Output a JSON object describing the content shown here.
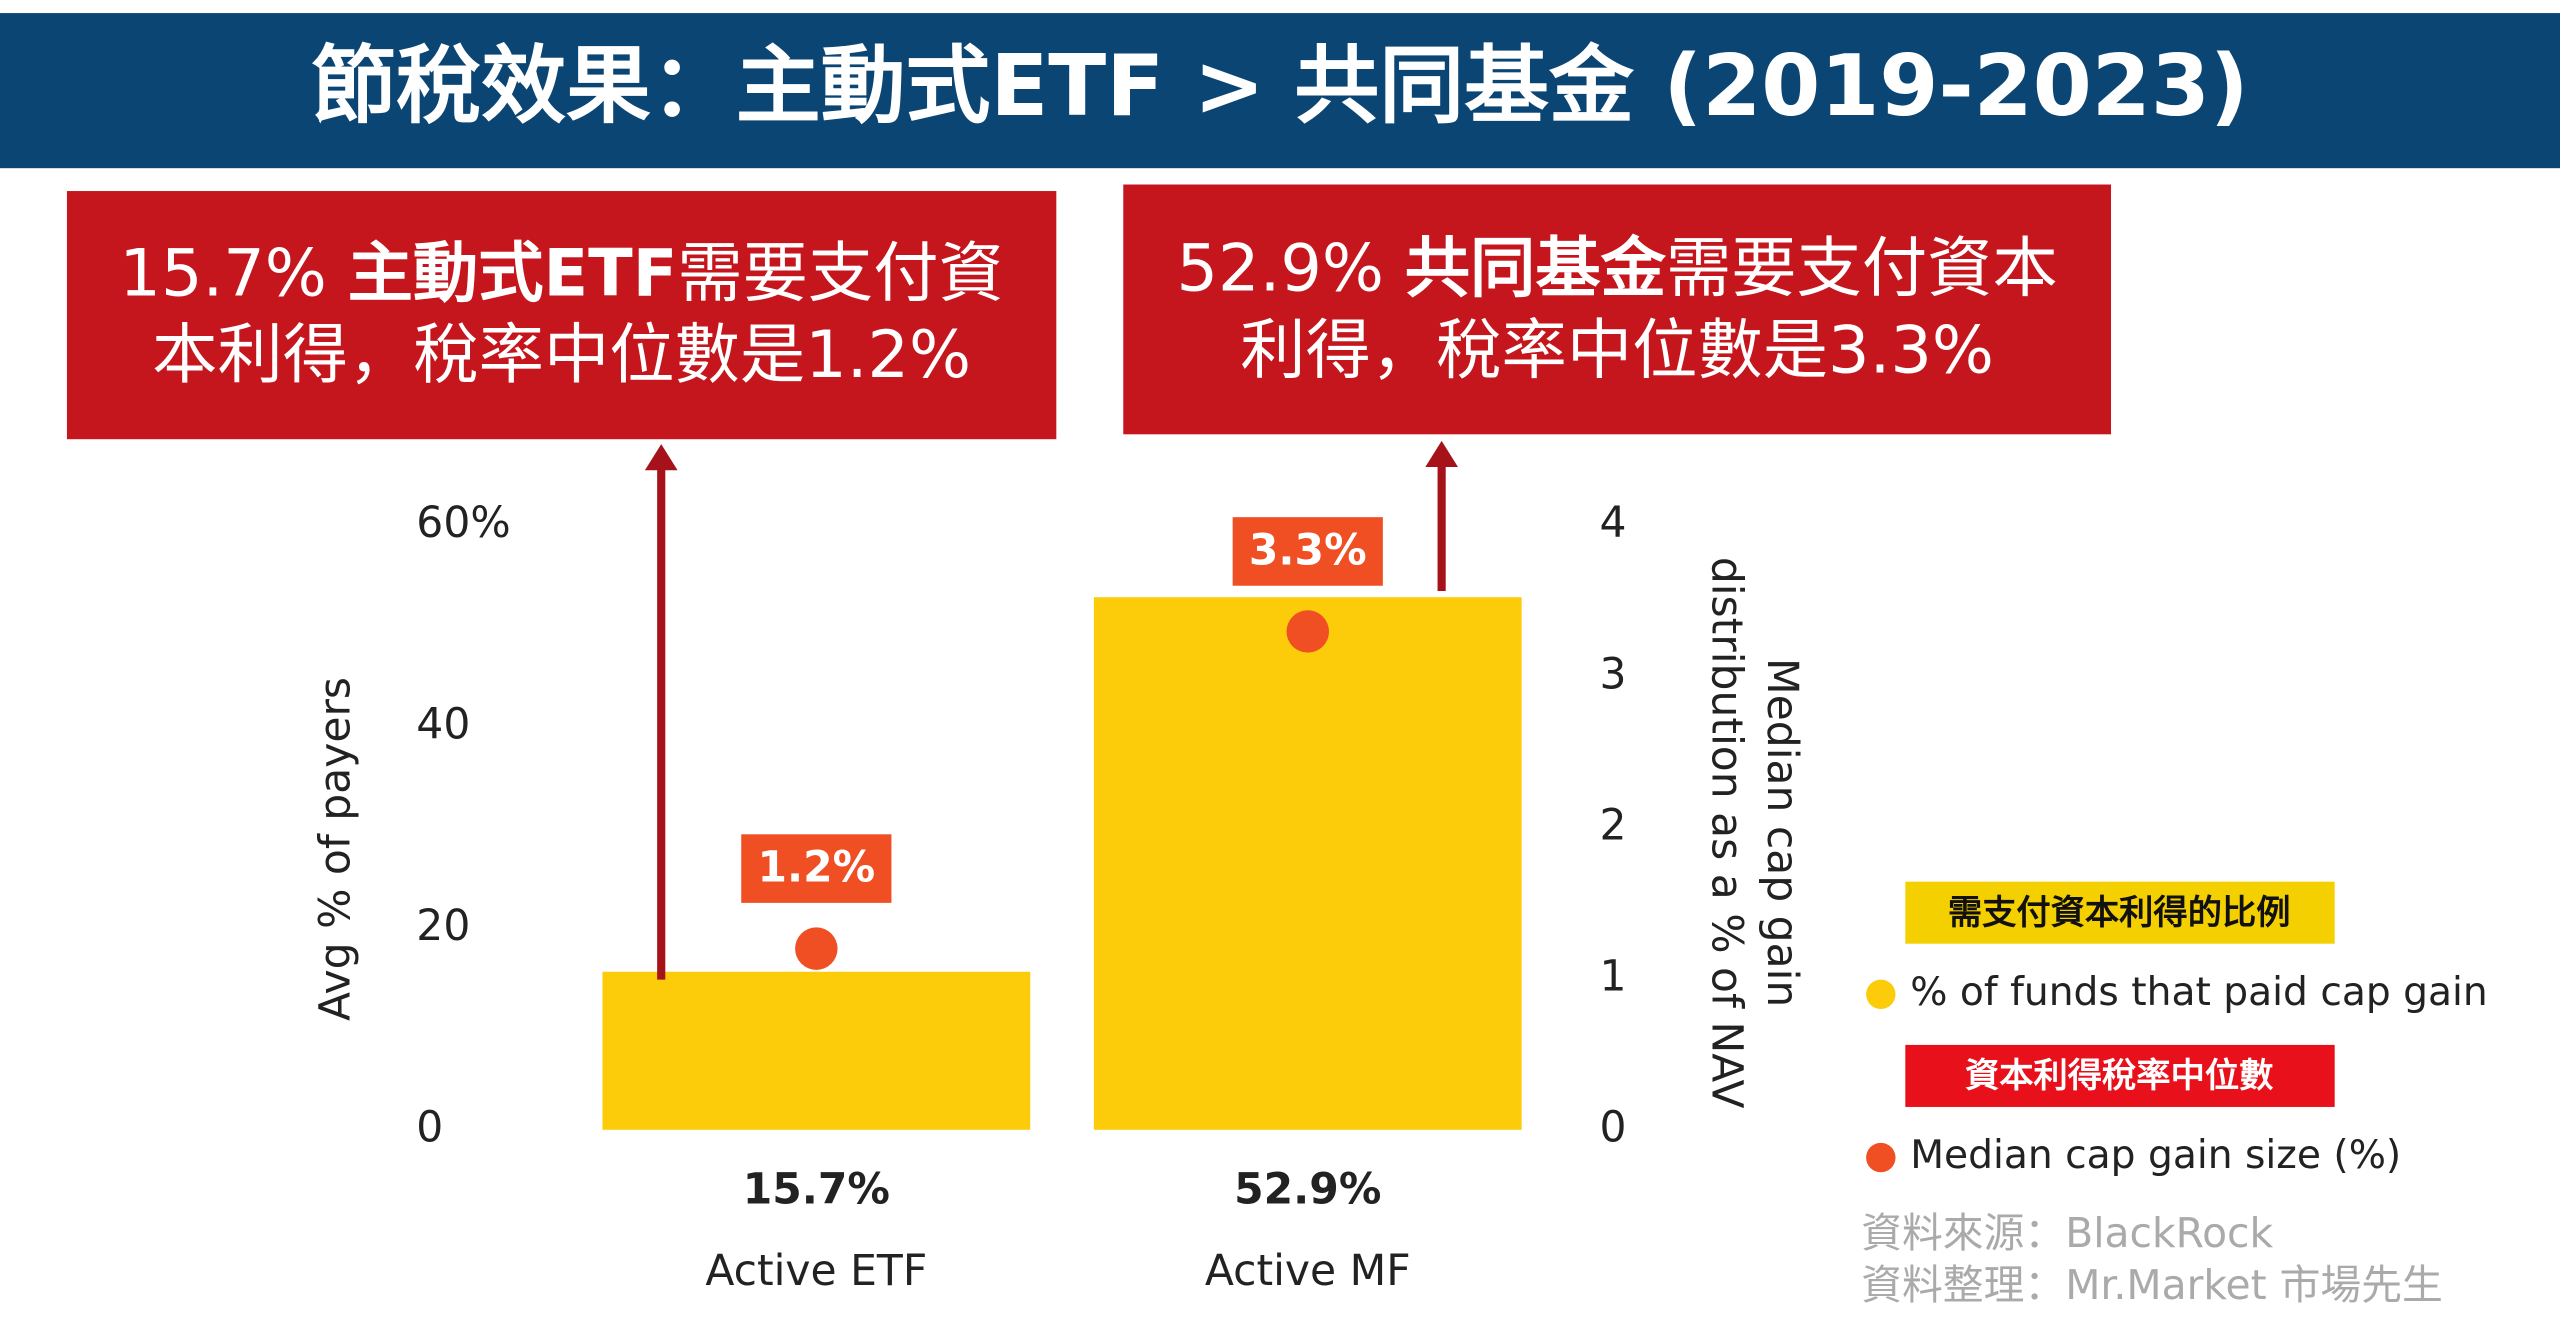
{
  "title": "節稅效果：主動式ETF > 共同基金 (2019-2023)",
  "callouts": [
    {
      "prefix": "15.7% ",
      "bold": "主動式ETF",
      "suffix": "需要支付資本利得，稅率中位數是1.2%"
    },
    {
      "prefix": "52.9% ",
      "bold": "共同基金",
      "suffix": "需要支付資本利得，稅率中位數是3.3%"
    }
  ],
  "chart_data": {
    "type": "bar",
    "categories": [
      "Active ETF",
      "Active MF"
    ],
    "series": [
      {
        "name": "% of funds that paid cap gain",
        "color": "#fccc0a",
        "values": [
          15.7,
          52.9
        ],
        "value_labels": [
          "15.7%",
          "52.9%"
        ]
      },
      {
        "name": "Median cap gain size (%)",
        "color": "#f04e23",
        "axis": "y2",
        "values": [
          1.2,
          3.3
        ],
        "value_labels": [
          "1.2%",
          "3.3%"
        ]
      }
    ],
    "legend_headers": [
      "需支付資本利得的比例",
      "資本利得稅率中位數"
    ],
    "ylabel": "Avg % of payers",
    "y2label": [
      "Median cap gain",
      "distribution as a % of NAV"
    ],
    "ylim": [
      0,
      60
    ],
    "yticks": [
      0,
      20,
      40,
      {
        "value": 60,
        "label": "60%"
      }
    ],
    "y2lim": [
      0,
      4
    ],
    "y2ticks": [
      0,
      1,
      2,
      3,
      4
    ]
  },
  "source": [
    "資料來源：BlackRock",
    "資料整理：Mr.Market 市場先生"
  ]
}
